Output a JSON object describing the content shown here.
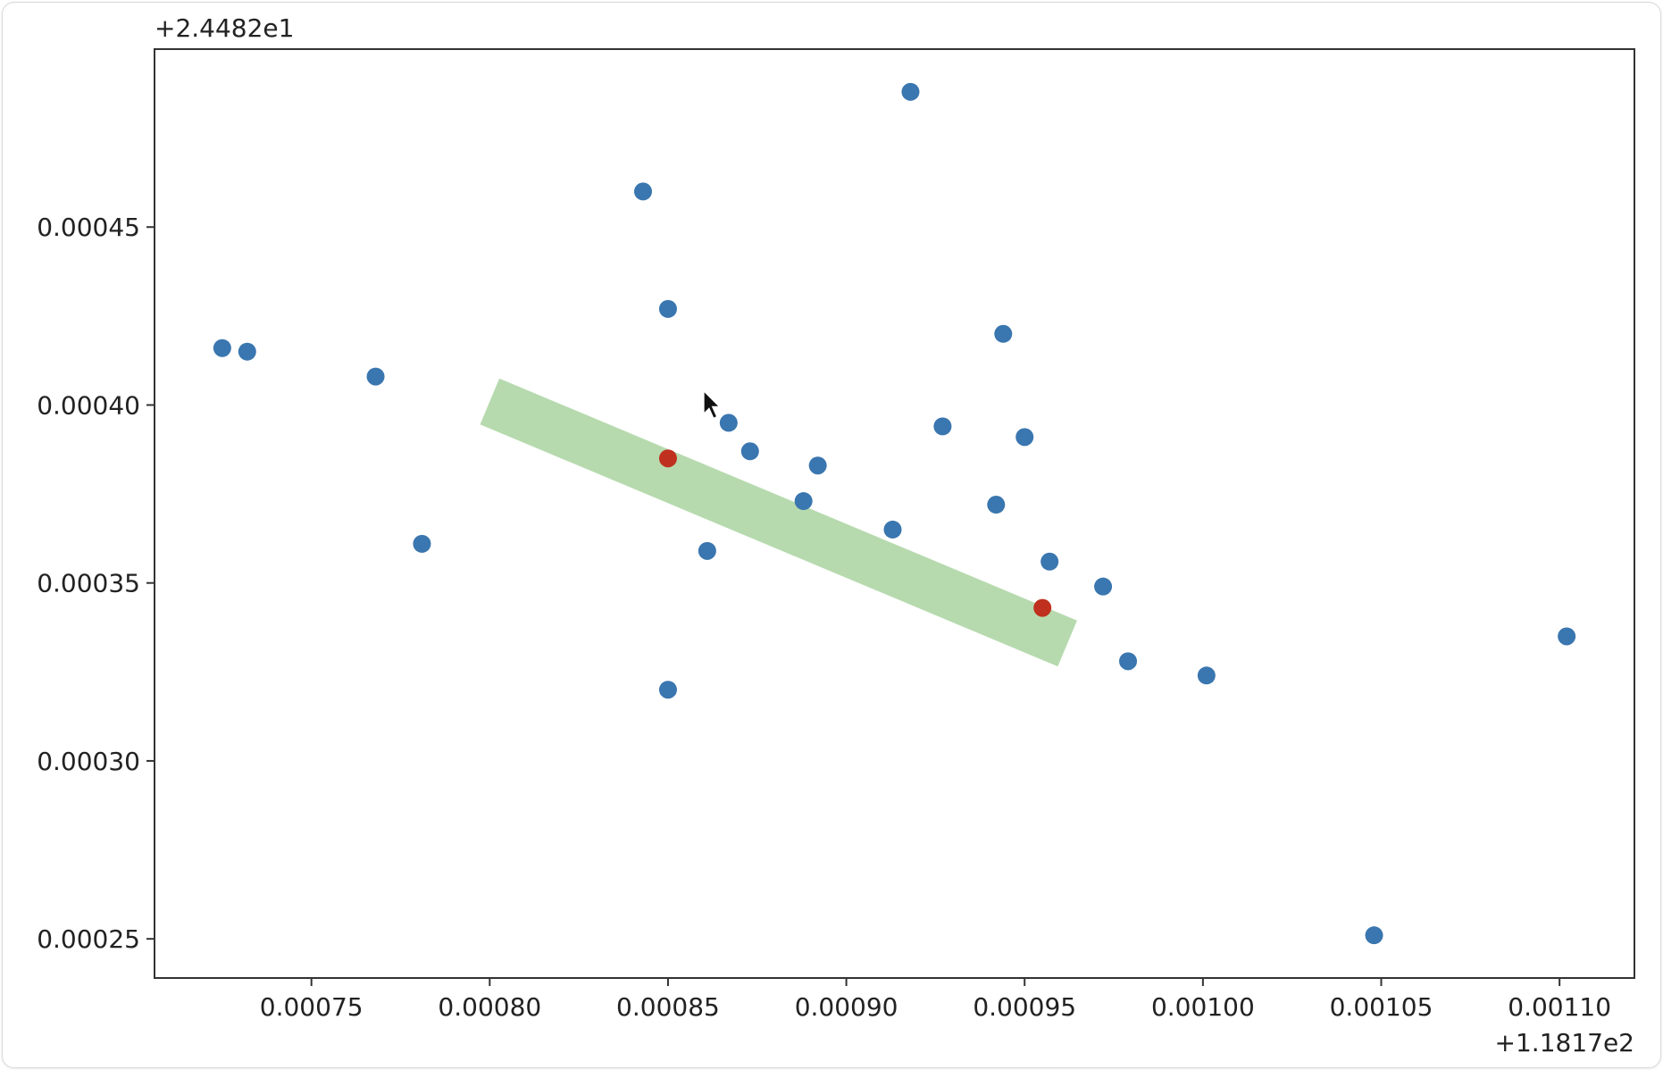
{
  "chart_data": {
    "type": "scatter",
    "title": "",
    "xlabel": "",
    "ylabel": "",
    "x_offset_label": "+1.1817e2",
    "y_offset_label": "+2.4482e1",
    "xlim": [
      0.000706,
      0.001121
    ],
    "ylim": [
      0.000239,
      0.0005
    ],
    "x_ticks": [
      {
        "value": 0.00075,
        "label": "0.00075"
      },
      {
        "value": 0.0008,
        "label": "0.00080"
      },
      {
        "value": 0.00085,
        "label": "0.00085"
      },
      {
        "value": 0.0009,
        "label": "0.00090"
      },
      {
        "value": 0.00095,
        "label": "0.00095"
      },
      {
        "value": 0.001,
        "label": "0.00100"
      },
      {
        "value": 0.00105,
        "label": "0.00105"
      },
      {
        "value": 0.0011,
        "label": "0.00110"
      }
    ],
    "y_ticks": [
      {
        "value": 0.00045,
        "label": "0.00045"
      },
      {
        "value": 0.0004,
        "label": "0.00040"
      },
      {
        "value": 0.00035,
        "label": "0.00035"
      },
      {
        "value": 0.0003,
        "label": "0.00030"
      },
      {
        "value": 0.00025,
        "label": "0.00025"
      }
    ],
    "grid": false,
    "series": [
      {
        "color": "#3a76af",
        "points": [
          {
            "x": 0.000725,
            "y": 0.000416
          },
          {
            "x": 0.000732,
            "y": 0.000415
          },
          {
            "x": 0.000768,
            "y": 0.000408
          },
          {
            "x": 0.000781,
            "y": 0.000361
          },
          {
            "x": 0.000843,
            "y": 0.00046
          },
          {
            "x": 0.00085,
            "y": 0.000427
          },
          {
            "x": 0.00085,
            "y": 0.00032
          },
          {
            "x": 0.000861,
            "y": 0.000359
          },
          {
            "x": 0.000867,
            "y": 0.000395
          },
          {
            "x": 0.000873,
            "y": 0.000387
          },
          {
            "x": 0.000888,
            "y": 0.000373
          },
          {
            "x": 0.000892,
            "y": 0.000383
          },
          {
            "x": 0.000913,
            "y": 0.000365
          },
          {
            "x": 0.000918,
            "y": 0.000488
          },
          {
            "x": 0.000927,
            "y": 0.000394
          },
          {
            "x": 0.000942,
            "y": 0.000372
          },
          {
            "x": 0.000944,
            "y": 0.00042
          },
          {
            "x": 0.00095,
            "y": 0.000391
          },
          {
            "x": 0.000957,
            "y": 0.000356
          },
          {
            "x": 0.000972,
            "y": 0.000349
          },
          {
            "x": 0.000979,
            "y": 0.000328
          },
          {
            "x": 0.001001,
            "y": 0.000324
          },
          {
            "x": 0.001048,
            "y": 0.000251
          },
          {
            "x": 0.001102,
            "y": 0.000335
          }
        ]
      },
      {
        "color": "#c0301e",
        "points": [
          {
            "x": 0.00085,
            "y": 0.000385
          },
          {
            "x": 0.000955,
            "y": 0.000343
          }
        ]
      }
    ],
    "band": {
      "color": "#a9d3a0",
      "from": {
        "x": 0.0008,
        "y": 0.000401
      },
      "to": {
        "x": 0.000962,
        "y": 0.000333
      },
      "half_width_y": 7e-06
    },
    "cursor_icon": "mouse-pointer-icon",
    "cursor_position": {
      "x": 0.00086,
      "y": 0.000404
    }
  }
}
